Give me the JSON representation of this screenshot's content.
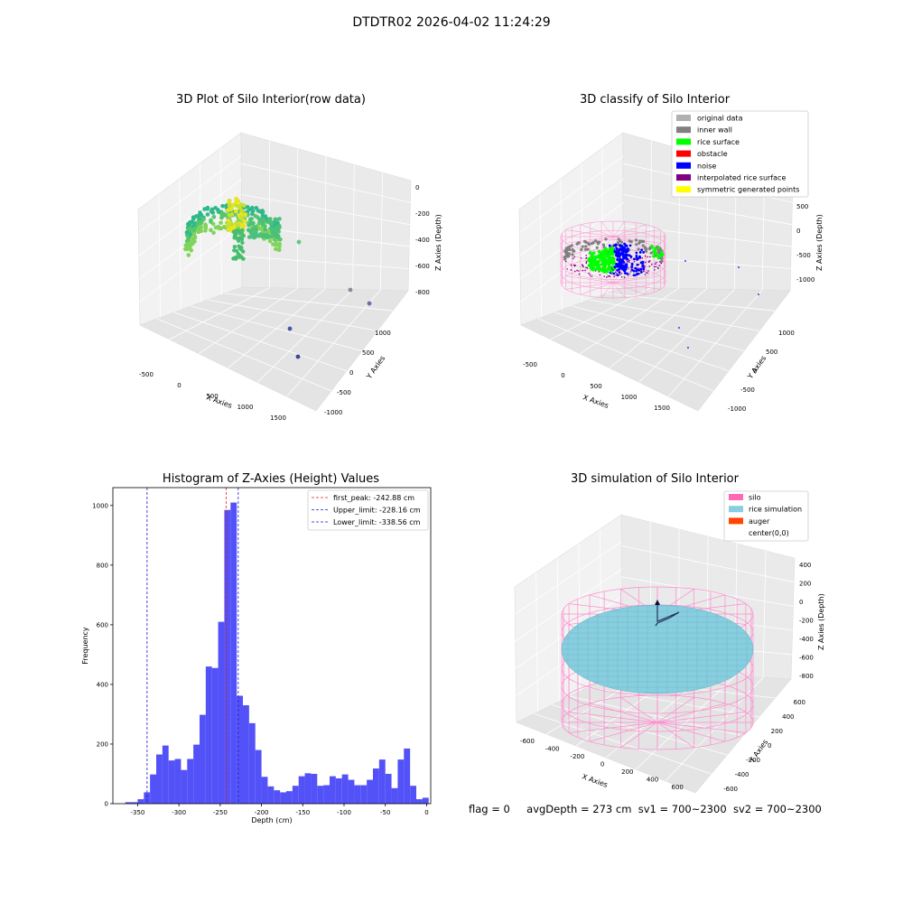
{
  "figure": {
    "suptitle": "DTDTR02 2026-04-02 11:24:29",
    "status": {
      "flag": "flag = 0",
      "avg_depth": "avgDepth = 273 cm",
      "sv1": "sv1 = 700~2300",
      "sv2": "sv2 = 700~2300"
    }
  },
  "colors": {
    "bar": "#4f4ff8",
    "first_peak": "#e02020",
    "limit": "#1a1acc",
    "silo": "#ff69b4",
    "rice_simulation": "#87cedf",
    "auger": "#ff4500",
    "original_data": "#b0b0b0",
    "inner_wall": "#808080",
    "rice_surface": "#00ff00",
    "obstacle": "#ff0000",
    "noise": "#0000ff",
    "interpolated": "#800080",
    "symmetric": "#ffff00"
  },
  "chart_data": [
    {
      "type": "scatter",
      "title": "3D Plot of Silo Interior(row data)",
      "xlabel": "X Axies",
      "ylabel": "Y Axies",
      "zlabel": "Z Axies (Depth)",
      "x_ticks": [
        "-500",
        "0",
        "500",
        "1000",
        "1500"
      ],
      "y_ticks": [
        "1000",
        "500",
        "0",
        "-500",
        "-1000"
      ],
      "z_ticks": [
        "0",
        "-200",
        "-400",
        "-600",
        "-800"
      ],
      "outliers": [
        {
          "x": 1350,
          "y": 300,
          "z": -880
        },
        {
          "x": 1450,
          "y": 600,
          "z": -830
        },
        {
          "x": 1100,
          "y": -300,
          "z": -870
        },
        {
          "x": 700,
          "y": 100,
          "z": -380
        }
      ],
      "grid": true
    },
    {
      "type": "scatter",
      "title": "3D classify of Silo Interior",
      "xlabel": "X Axies",
      "ylabel": "Y Axies",
      "zlabel": "Z Axies (Depth)",
      "x_ticks": [
        "-500",
        "0",
        "500",
        "1000",
        "1500"
      ],
      "y_ticks": [
        "1000",
        "500",
        "0",
        "-500",
        "-1000"
      ],
      "z_ticks": [
        "500",
        "0",
        "-500",
        "-1000"
      ],
      "legend": [
        "original data",
        "inner wall",
        "rice surface",
        "obstacle",
        "noise",
        "interpolated rice surface",
        "symmetric generated points"
      ],
      "legend_placement": "top-right",
      "grid": true
    },
    {
      "type": "bar",
      "title": "Histogram of Z-Axies (Height) Values",
      "xlabel": "Depth (cm)",
      "ylabel": "Frequency",
      "xlim": [
        -380,
        5
      ],
      "ylim": [
        0,
        1060
      ],
      "x_ticks": [
        -350,
        -300,
        -250,
        -200,
        -150,
        -100,
        -50,
        0
      ],
      "y_ticks": [
        0,
        200,
        400,
        600,
        800,
        1000
      ],
      "bin_start": -365,
      "bin_width": 7.5,
      "values": [
        5,
        5,
        15,
        38,
        98,
        165,
        195,
        145,
        150,
        113,
        150,
        198,
        298,
        460,
        455,
        610,
        985,
        1010,
        362,
        330,
        270,
        180,
        90,
        58,
        45,
        38,
        42,
        60,
        92,
        102,
        100,
        60,
        62,
        92,
        85,
        98,
        80,
        62,
        62,
        80,
        118,
        148,
        100,
        52,
        148,
        185,
        60,
        15,
        20
      ],
      "lines": [
        {
          "label": "first_peak: -242.88 cm",
          "x": -242.88,
          "color": "#e02020"
        },
        {
          "label": "Upper_limit: -228.16 cm",
          "x": -228.16,
          "color": "#1a1acc"
        },
        {
          "label": "Lower_limit: -338.56 cm",
          "x": -338.56,
          "color": "#1a1acc"
        }
      ],
      "legend_placement": "top-right"
    },
    {
      "type": "scatter",
      "title": "3D simulation of Silo Interior",
      "xlabel": "X Axies",
      "ylabel": "Y Axies",
      "zlabel": "Z Axies (Depth)",
      "x_ticks": [
        "-600",
        "-400",
        "-200",
        "0",
        "200",
        "400",
        "600"
      ],
      "y_ticks": [
        "600",
        "400",
        "200",
        "0",
        "-200",
        "-400",
        "-600"
      ],
      "z_ticks": [
        "400",
        "200",
        "0",
        "-200",
        "-400",
        "-600",
        "-800"
      ],
      "legend": [
        "silo",
        "rice simulation",
        "auger",
        "center(0,0)"
      ],
      "legend_placement": "top-right",
      "grid": true
    }
  ]
}
